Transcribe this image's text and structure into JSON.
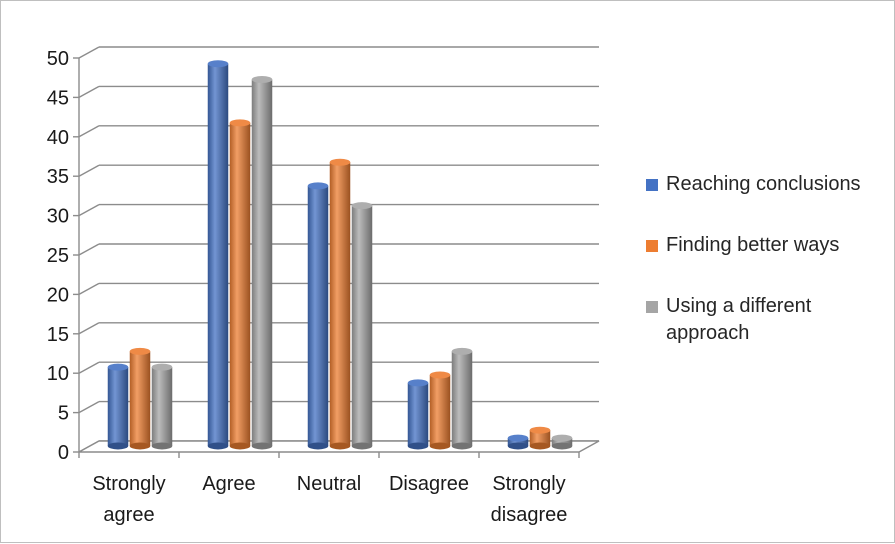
{
  "chart_data": {
    "type": "bar",
    "categories": [
      [
        "Strongly",
        "agree"
      ],
      [
        "Agree"
      ],
      [
        "Neutral"
      ],
      [
        "Disagree"
      ],
      [
        "Strongly",
        "disagree"
      ]
    ],
    "series": [
      {
        "name": "Reaching conclusions",
        "values": [
          10,
          48.5,
          33,
          8,
          1
        ],
        "color": "#4472c4"
      },
      {
        "name": "Finding better ways",
        "values": [
          12,
          41,
          36,
          9,
          2
        ],
        "color": "#ed7d31"
      },
      {
        "name": "Using a different approach",
        "values": [
          10,
          46.5,
          30.5,
          12,
          1
        ],
        "color": "#a5a5a5"
      }
    ],
    "ylim": [
      0,
      50
    ],
    "yticks": [
      0,
      5,
      10,
      15,
      20,
      25,
      30,
      35,
      40,
      45,
      50
    ],
    "grid": true,
    "legend_position": "right",
    "legend_lines": [
      [
        "Reaching conclusions"
      ],
      [
        "Finding better ways"
      ],
      [
        "Using a different",
        "approach"
      ]
    ]
  }
}
